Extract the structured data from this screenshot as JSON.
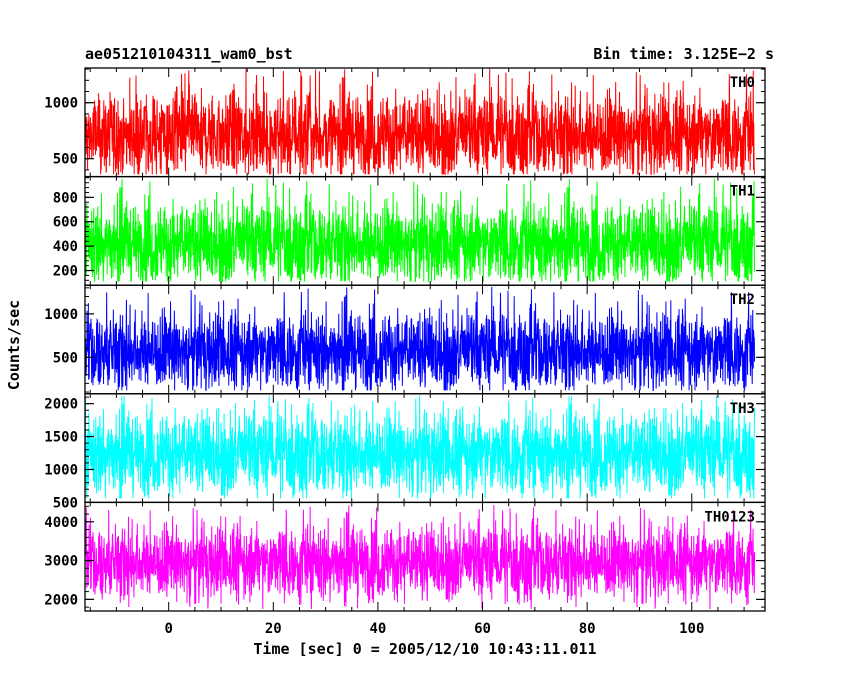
{
  "chart_data": {
    "type": "line",
    "title_left": "ae051210104311_wam0_bst",
    "title_right": "Bin time: 3.125E−2 s",
    "xlabel": "Time [sec] 0 = 2005/12/10 10:43:11.011",
    "ylabel": "Counts/sec",
    "xlim": [
      -16,
      114
    ],
    "x_range_data": [
      -16,
      112
    ],
    "x_ticks": [
      0,
      20,
      40,
      60,
      80,
      100
    ],
    "x_tick_labels": [
      "0",
      "20",
      "40",
      "60",
      "80",
      "100"
    ],
    "panels": [
      {
        "name": "TH0",
        "color": "#ff0000",
        "ylim": [
          340,
          1310
        ],
        "ticks": [
          500,
          1000
        ],
        "tick_labels": [
          "500",
          "1000"
        ],
        "mean": 710,
        "spread": 190,
        "spike_max": 1310,
        "dip_min": 360
      },
      {
        "name": "TH1",
        "color": "#00ff00",
        "ylim": [
          80,
          970
        ],
        "ticks": [
          200,
          400,
          600,
          800
        ],
        "tick_labels": [
          "200",
          "400",
          "600",
          "800"
        ],
        "mean": 420,
        "spread": 170,
        "spike_max": 960,
        "dip_min": 110
      },
      {
        "name": "TH2",
        "color": "#0000ff",
        "ylim": [
          80,
          1330
        ],
        "ticks": [
          500,
          1000
        ],
        "tick_labels": [
          "500",
          "1000"
        ],
        "mean": 570,
        "spread": 230,
        "spike_max": 1320,
        "dip_min": 120
      },
      {
        "name": "TH3",
        "color": "#00ffff",
        "ylim": [
          500,
          2150
        ],
        "ticks": [
          500,
          1000,
          1500,
          2000
        ],
        "tick_labels": [
          "500",
          "1000",
          "1500",
          "2000"
        ],
        "mean": 1240,
        "spread": 320,
        "spike_max": 2130,
        "dip_min": 560
      },
      {
        "name": "TH0123",
        "color": "#ff00ff",
        "ylim": [
          1700,
          4500
        ],
        "ticks": [
          2000,
          3000,
          4000
        ],
        "tick_labels": [
          "2000",
          "3000",
          "4000"
        ],
        "mean": 2950,
        "spread": 480,
        "spike_max": 4450,
        "dip_min": 1750
      }
    ]
  }
}
